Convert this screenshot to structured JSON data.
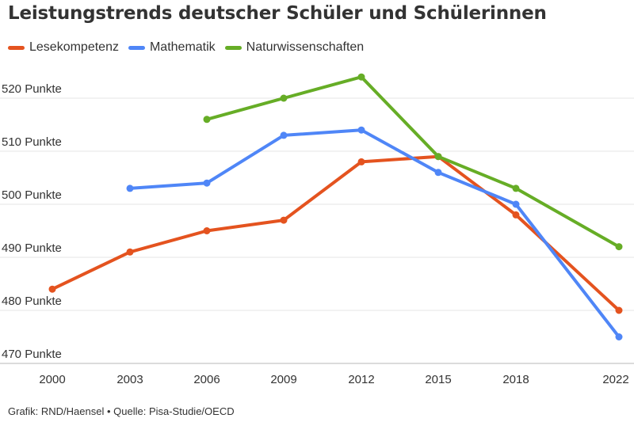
{
  "title": "Leistungstrends deutscher Schüler und Schülerinnen",
  "footer": "Grafik: RND/Haensel • Quelle: Pisa-Studie/OECD",
  "chart_data": {
    "type": "line",
    "title": "Leistungstrends deutscher Schüler und Schülerinnen",
    "xlabel": "",
    "ylabel": "",
    "categories": [
      "2000",
      "2003",
      "2006",
      "2009",
      "2012",
      "2015",
      "2018",
      "2022"
    ],
    "y_tick_labels": [
      "520 Punkte",
      "510 Punkte",
      "500 Punkte",
      "490 Punkte",
      "480 Punkte",
      "470 Punkte"
    ],
    "y_ticks": [
      520,
      510,
      500,
      490,
      480,
      470
    ],
    "ylim": [
      470,
      525
    ],
    "grid": true,
    "legend_position": "top-left",
    "series": [
      {
        "name": "Lesekompetenz",
        "color": "#e4531f",
        "values": [
          484,
          491,
          495,
          497,
          508,
          509,
          498,
          480
        ]
      },
      {
        "name": "Mathematik",
        "color": "#4f86f7",
        "values": [
          null,
          503,
          504,
          513,
          514,
          506,
          500,
          475
        ]
      },
      {
        "name": "Naturwissenschaften",
        "color": "#66ad26",
        "values": [
          null,
          null,
          516,
          520,
          524,
          509,
          503,
          492
        ]
      }
    ]
  }
}
